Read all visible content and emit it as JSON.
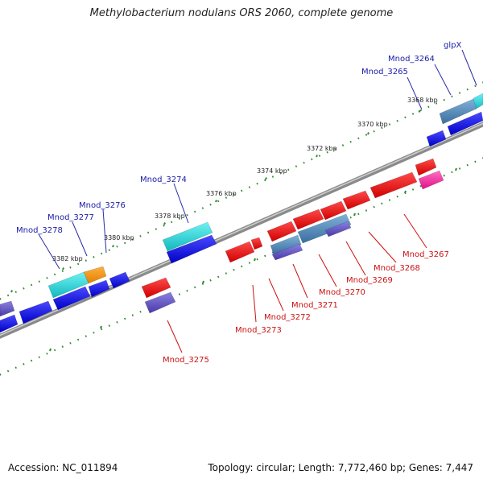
{
  "title": "Methylobacterium nodulans ORS 2060, complete genome",
  "footer": {
    "accession": "Accession: NC_011894",
    "summary": "Topology: circular; Length: 7,772,460 bp; Genes: 7,447"
  },
  "colors": {
    "backbone": "#8a8a8a",
    "tick": "#2e8b2e",
    "forward_label": "#1a1aa8",
    "reverse_label": "#cc1111"
  },
  "scale_labels": [
    "3368 kbp",
    "3370 kbp",
    "3372 kbp",
    "3374 kbp",
    "3376 kbp",
    "3378 kbp",
    "3380 kbp",
    "3382 kbp"
  ],
  "forward_gene_labels": [
    "glpX",
    "Mnod_3264",
    "Mnod_3265",
    "Mnod_3274",
    "Mnod_3276",
    "Mnod_3277",
    "Mnod_3278"
  ],
  "reverse_gene_labels": [
    "Mnod_3267",
    "Mnod_3268",
    "Mnod_3269",
    "Mnod_3270",
    "Mnod_3271",
    "Mnod_3272",
    "Mnod_3273",
    "Mnod_3275"
  ]
}
